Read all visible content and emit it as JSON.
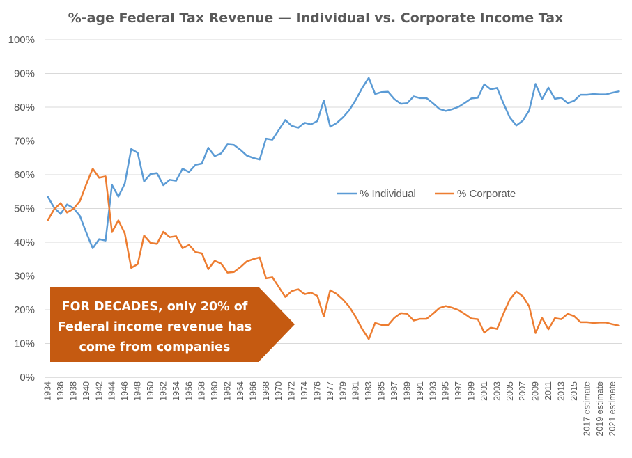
{
  "chart_data": {
    "type": "line",
    "title": "%-age Federal Tax Revenue — Individual vs. Corporate Income Tax",
    "xlabel": "",
    "ylabel": "",
    "ylim": [
      0,
      100
    ],
    "y_ticks": [
      "0%",
      "10%",
      "20%",
      "30%",
      "40%",
      "50%",
      "60%",
      "70%",
      "80%",
      "90%",
      "100%"
    ],
    "grid": true,
    "legend_position": "right-center",
    "x": [
      "1934",
      "1935",
      "1936",
      "1937",
      "1938",
      "1939",
      "1940",
      "1941",
      "1942",
      "1943",
      "1944",
      "1945",
      "1946",
      "1947",
      "1948",
      "1949",
      "1950",
      "1951",
      "1952",
      "1953",
      "1954",
      "1955",
      "1956",
      "1957",
      "1958",
      "1959",
      "1960",
      "1961",
      "1962",
      "1963",
      "1964",
      "1965",
      "1966",
      "1967",
      "1968",
      "1969",
      "1970",
      "1971",
      "1972",
      "1973",
      "1974",
      "1975",
      "1976",
      "1976",
      "1977",
      "1978",
      "1979",
      "1980",
      "1981",
      "1982",
      "1983",
      "1984",
      "1985",
      "1986",
      "1987",
      "1988",
      "1989",
      "1990",
      "1991",
      "1992",
      "1993",
      "1994",
      "1995",
      "1996",
      "1997",
      "1998",
      "1999",
      "2000",
      "2001",
      "2002",
      "2003",
      "2004",
      "2005",
      "2006",
      "2007",
      "2008",
      "2009",
      "2010",
      "2011",
      "2012",
      "2013",
      "2014",
      "2015",
      "2016",
      "2017 estimate",
      "2018 estimate",
      "2019 estimate",
      "2020 estimate",
      "2021 estimate",
      "2022 estimate"
    ],
    "x_tick_labels": [
      "1934",
      "1936",
      "1938",
      "1940",
      "1942",
      "1944",
      "1946",
      "1948",
      "1950",
      "1952",
      "1954",
      "1956",
      "1958",
      "1960",
      "1962",
      "1964",
      "1966",
      "1968",
      "1970",
      "1972",
      "1974",
      "1976",
      "1977",
      "1979",
      "1981",
      "1983",
      "1985",
      "1987",
      "1989",
      "1991",
      "1993",
      "1995",
      "1997",
      "1999",
      "2001",
      "2003",
      "2005",
      "2007",
      "2009",
      "2011",
      "2013",
      "2015",
      "2017 estimate",
      "2019 estimate",
      "2021 estimate"
    ],
    "series": [
      {
        "name": "% Individual",
        "color": "#5b9bd5",
        "values": [
          53.5,
          50.2,
          48.4,
          51.2,
          50.1,
          47.8,
          42.8,
          38.2,
          40.9,
          40.5,
          57.0,
          53.5,
          57.4,
          67.6,
          66.5,
          58.0,
          60.2,
          60.5,
          56.9,
          58.5,
          58.2,
          61.8,
          60.8,
          62.9,
          63.3,
          68.0,
          65.5,
          66.3,
          69.0,
          68.8,
          67.4,
          65.7,
          65.0,
          64.5,
          70.7,
          70.4,
          73.3,
          76.2,
          74.5,
          73.9,
          75.4,
          74.9,
          75.9,
          82.0,
          74.2,
          75.3,
          77.0,
          79.2,
          82.2,
          85.8,
          88.7,
          83.9,
          84.5,
          84.6,
          82.4,
          81.0,
          81.2,
          83.2,
          82.7,
          82.7,
          81.2,
          79.5,
          78.9,
          79.4,
          80.1,
          81.3,
          82.6,
          82.8,
          86.8,
          85.3,
          85.7,
          81.1,
          76.9,
          74.6,
          76.0,
          79.0,
          86.9,
          82.4,
          85.8,
          82.5,
          82.8,
          81.2,
          81.9,
          83.7,
          83.7,
          83.9,
          83.8,
          83.8,
          84.3,
          84.7
        ]
      },
      {
        "name": "% Corporate",
        "color": "#ed7d31",
        "values": [
          46.5,
          49.8,
          51.6,
          48.8,
          49.9,
          52.2,
          57.2,
          61.8,
          59.1,
          59.5,
          43.0,
          46.5,
          42.6,
          32.4,
          33.5,
          42.0,
          39.8,
          39.5,
          43.1,
          41.5,
          41.8,
          38.2,
          39.2,
          37.1,
          36.7,
          32.0,
          34.5,
          33.7,
          31.0,
          31.2,
          32.6,
          34.3,
          35.0,
          35.5,
          29.3,
          29.6,
          26.7,
          23.8,
          25.5,
          26.1,
          24.6,
          25.1,
          24.1,
          18.0,
          25.8,
          24.7,
          23.0,
          20.8,
          17.8,
          14.2,
          11.3,
          16.1,
          15.5,
          15.4,
          17.6,
          19.0,
          18.8,
          16.8,
          17.3,
          17.3,
          18.8,
          20.5,
          21.1,
          20.6,
          19.9,
          18.7,
          17.4,
          17.2,
          13.2,
          14.7,
          14.3,
          18.9,
          23.1,
          25.4,
          24.0,
          21.0,
          13.1,
          17.6,
          14.2,
          17.5,
          17.2,
          18.8,
          18.1,
          16.3,
          16.3,
          16.1,
          16.2,
          16.2,
          15.7,
          15.3
        ]
      }
    ],
    "annotation": {
      "line1": "FOR DECADES, only 20% of",
      "line2": "Federal income revenue has",
      "line3": "come from companies",
      "color": "#c55a11"
    }
  }
}
